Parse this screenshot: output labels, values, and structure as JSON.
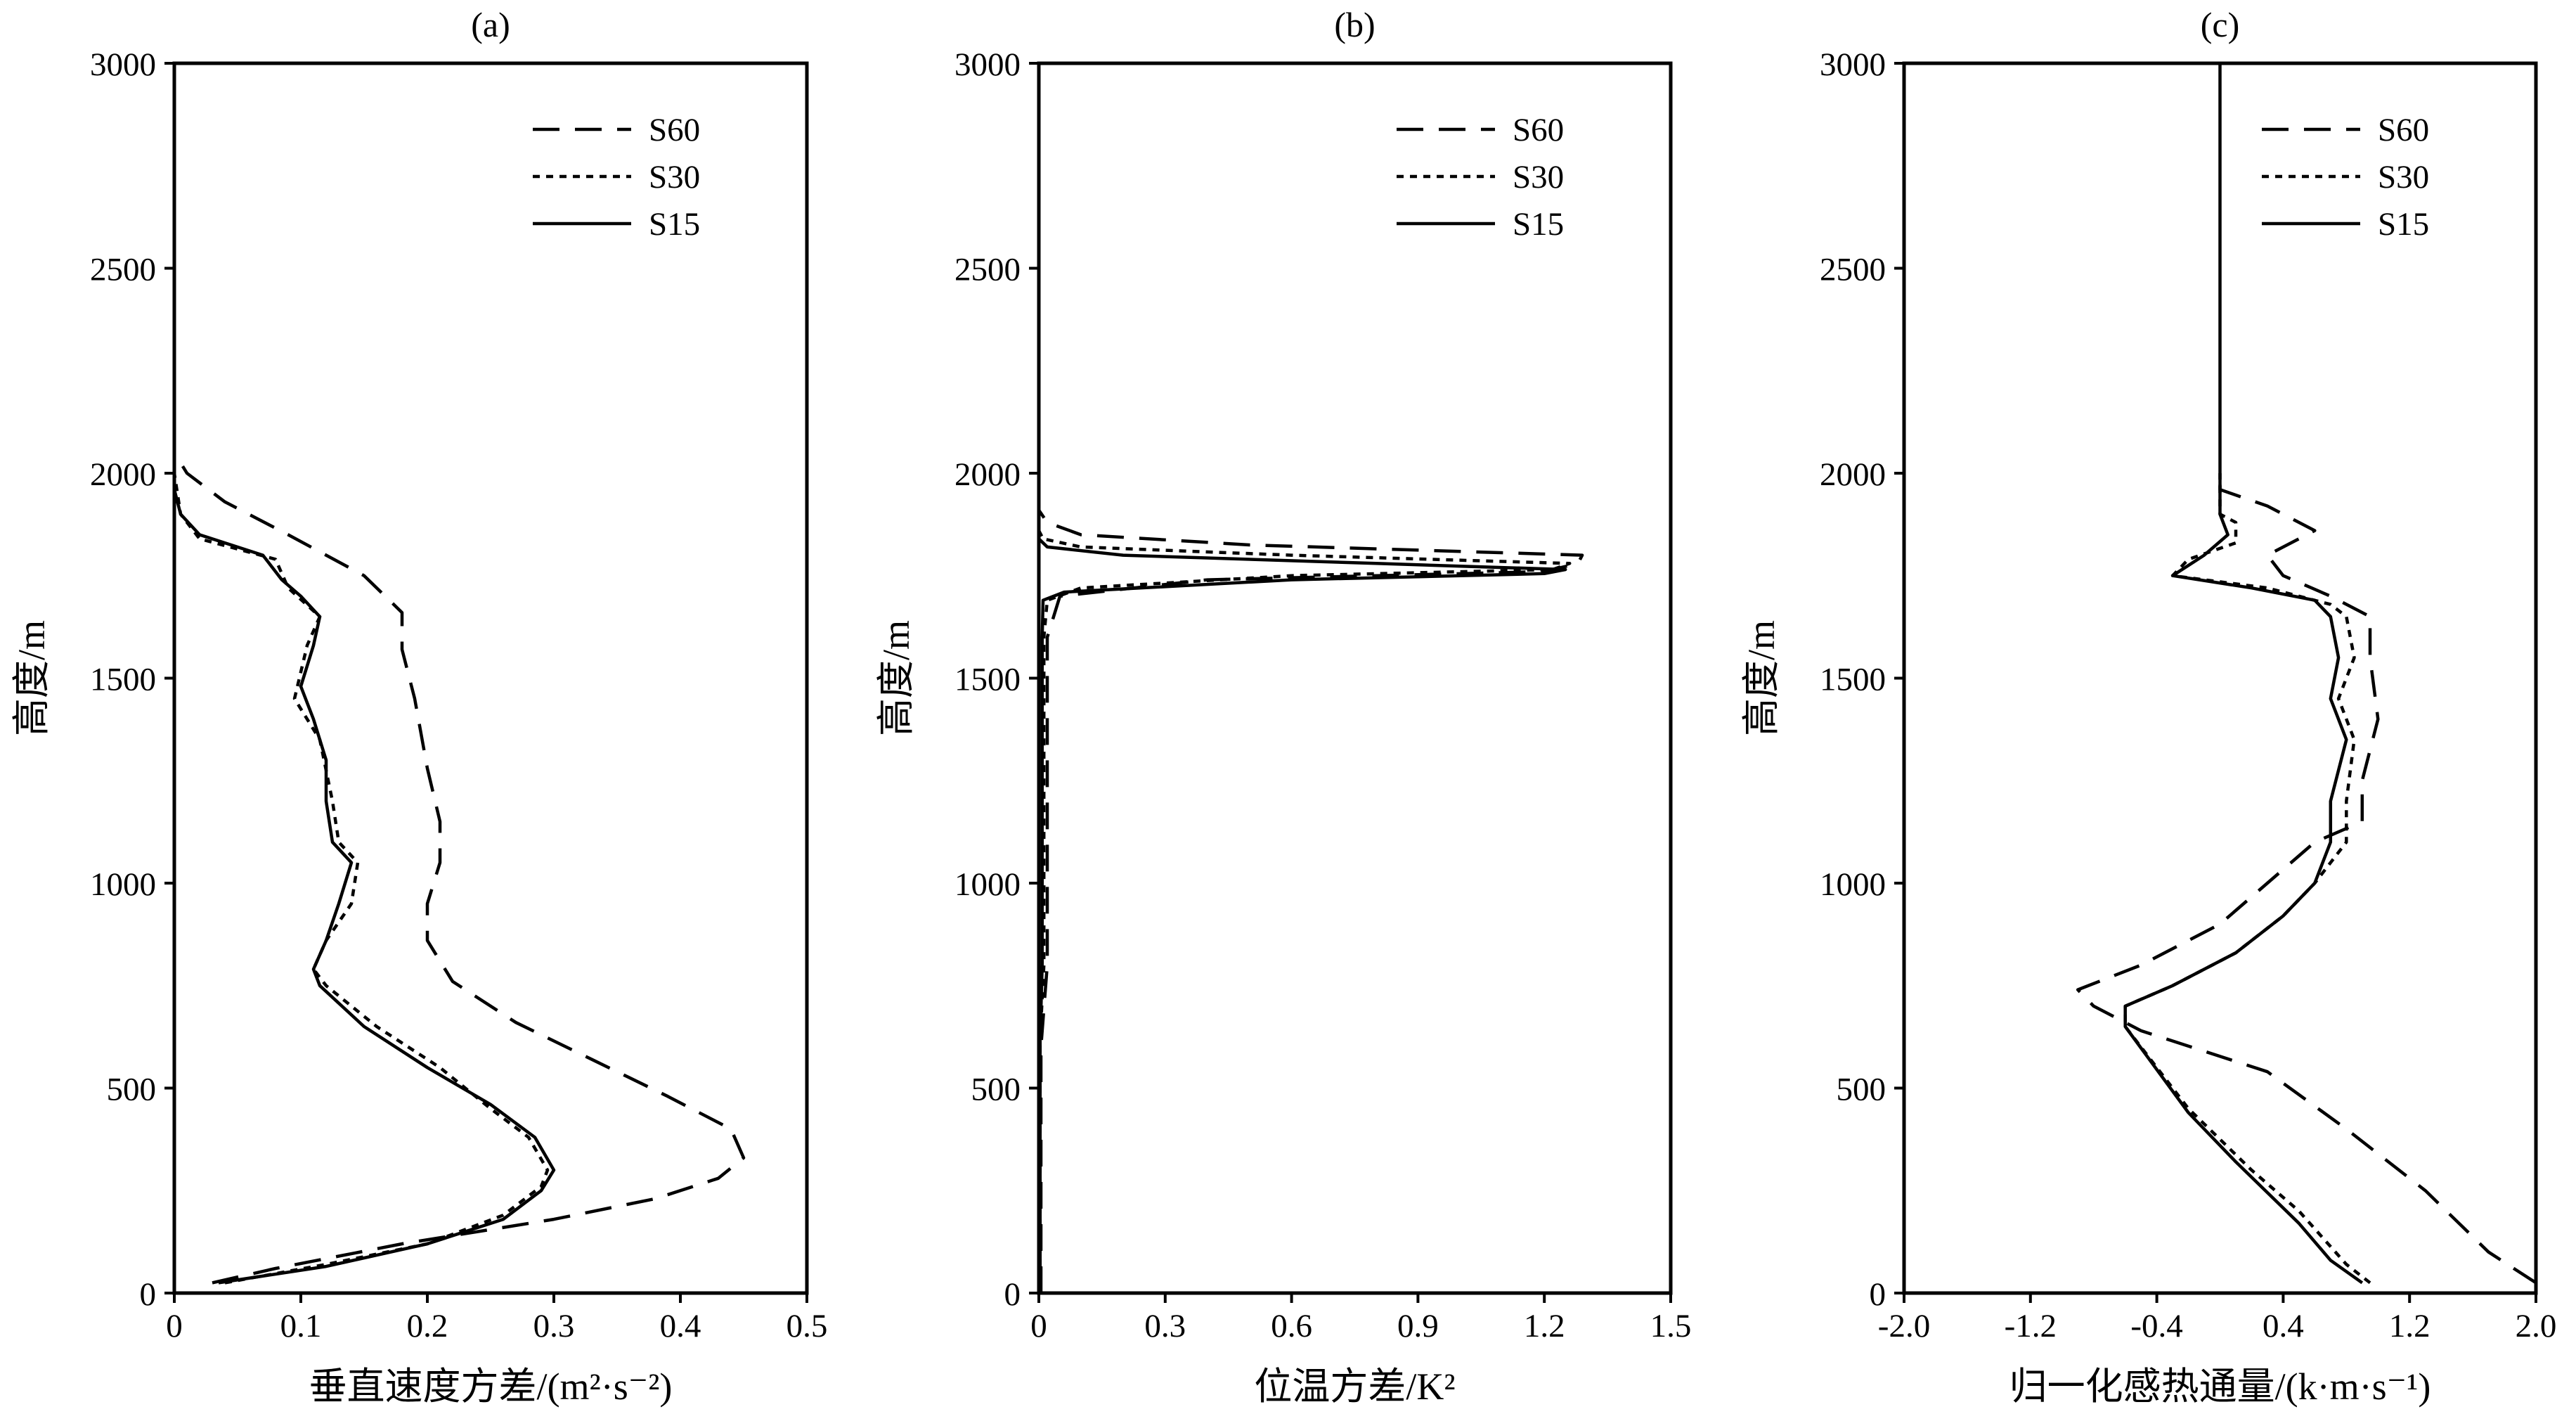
{
  "chart_data": [
    {
      "type": "line",
      "title": "(a)",
      "xlabel": "垂直速度方差/(m²·s⁻²)",
      "ylabel": "高度/m",
      "xlim": [
        0,
        0.5
      ],
      "ylim": [
        0,
        3000
      ],
      "xticks": [
        "0",
        "0.1",
        "0.2",
        "0.3",
        "0.4",
        "0.5"
      ],
      "yticks": [
        "0",
        "500",
        "1000",
        "1500",
        "2000",
        "2500",
        "3000"
      ],
      "legend_position": "top-right",
      "series": [
        {
          "name": "S60",
          "style": "dashed",
          "points": [
            [
              0.03,
              25
            ],
            [
              0.08,
              60
            ],
            [
              0.18,
              120
            ],
            [
              0.3,
              180
            ],
            [
              0.38,
              230
            ],
            [
              0.43,
              280
            ],
            [
              0.45,
              330
            ],
            [
              0.44,
              400
            ],
            [
              0.39,
              480
            ],
            [
              0.33,
              570
            ],
            [
              0.27,
              660
            ],
            [
              0.22,
              760
            ],
            [
              0.2,
              860
            ],
            [
              0.2,
              950
            ],
            [
              0.21,
              1050
            ],
            [
              0.21,
              1150
            ],
            [
              0.2,
              1280
            ],
            [
              0.19,
              1450
            ],
            [
              0.18,
              1570
            ],
            [
              0.18,
              1660
            ],
            [
              0.15,
              1750
            ],
            [
              0.09,
              1850
            ],
            [
              0.04,
              1930
            ],
            [
              0.01,
              2000
            ],
            [
              0,
              2050
            ]
          ]
        },
        {
          "name": "S30",
          "style": "dotted",
          "points": [
            [
              0.04,
              25
            ],
            [
              0.12,
              70
            ],
            [
              0.2,
              120
            ],
            [
              0.26,
              190
            ],
            [
              0.29,
              260
            ],
            [
              0.295,
              300
            ],
            [
              0.28,
              380
            ],
            [
              0.25,
              450
            ],
            [
              0.21,
              550
            ],
            [
              0.16,
              650
            ],
            [
              0.12,
              750
            ],
            [
              0.11,
              790
            ],
            [
              0.12,
              860
            ],
            [
              0.14,
              950
            ],
            [
              0.145,
              1050
            ],
            [
              0.13,
              1100
            ],
            [
              0.125,
              1200
            ],
            [
              0.115,
              1350
            ],
            [
              0.095,
              1450
            ],
            [
              0.105,
              1580
            ],
            [
              0.115,
              1650
            ],
            [
              0.09,
              1720
            ],
            [
              0.08,
              1790
            ],
            [
              0.02,
              1840
            ],
            [
              0.005,
              1900
            ],
            [
              0,
              2000
            ],
            [
              0,
              2060
            ]
          ]
        },
        {
          "name": "S15",
          "style": "solid",
          "points": [
            [
              0.035,
              25
            ],
            [
              0.12,
              65
            ],
            [
              0.2,
              120
            ],
            [
              0.26,
              180
            ],
            [
              0.29,
              250
            ],
            [
              0.3,
              300
            ],
            [
              0.285,
              380
            ],
            [
              0.25,
              460
            ],
            [
              0.2,
              550
            ],
            [
              0.15,
              650
            ],
            [
              0.115,
              750
            ],
            [
              0.11,
              790
            ],
            [
              0.12,
              860
            ],
            [
              0.13,
              950
            ],
            [
              0.14,
              1050
            ],
            [
              0.125,
              1100
            ],
            [
              0.12,
              1200
            ],
            [
              0.12,
              1300
            ],
            [
              0.11,
              1400
            ],
            [
              0.1,
              1480
            ],
            [
              0.11,
              1580
            ],
            [
              0.115,
              1650
            ],
            [
              0.1,
              1700
            ],
            [
              0.085,
              1740
            ],
            [
              0.07,
              1800
            ],
            [
              0.02,
              1850
            ],
            [
              0.005,
              1900
            ],
            [
              0,
              1960
            ],
            [
              0,
              2070
            ]
          ]
        }
      ]
    },
    {
      "type": "line",
      "title": "(b)",
      "xlabel": "位温方差/K²",
      "ylabel": "高度/m",
      "xlim": [
        0,
        1.5
      ],
      "ylim": [
        0,
        3000
      ],
      "xticks": [
        "0",
        "0.3",
        "0.6",
        "0.9",
        "1.2",
        "1.5"
      ],
      "yticks": [
        "0",
        "500",
        "1000",
        "1500",
        "2000",
        "2500",
        "3000"
      ],
      "legend_position": "top-right",
      "series": [
        {
          "name": "S60",
          "style": "dashed",
          "points": [
            [
              0.005,
              0
            ],
            [
              0.005,
              600
            ],
            [
              0.02,
              800
            ],
            [
              0.02,
              1200
            ],
            [
              0.02,
              1600
            ],
            [
              0.05,
              1700
            ],
            [
              0.4,
              1740
            ],
            [
              1.2,
              1760
            ],
            [
              1.28,
              1780
            ],
            [
              1.29,
              1800
            ],
            [
              0.5,
              1825
            ],
            [
              0.1,
              1850
            ],
            [
              0.02,
              1880
            ],
            [
              0,
              1910
            ]
          ]
        },
        {
          "name": "S30",
          "style": "dotted",
          "points": [
            [
              0.003,
              0
            ],
            [
              0.003,
              620
            ],
            [
              0.012,
              800
            ],
            [
              0.012,
              1200
            ],
            [
              0.012,
              1600
            ],
            [
              0.02,
              1690
            ],
            [
              0.1,
              1720
            ],
            [
              0.6,
              1750
            ],
            [
              1.22,
              1765
            ],
            [
              1.26,
              1780
            ],
            [
              0.6,
              1800
            ],
            [
              0.1,
              1820
            ],
            [
              0.01,
              1840
            ],
            [
              0,
              1860
            ]
          ]
        },
        {
          "name": "S15",
          "style": "solid",
          "points": [
            [
              0.003,
              0
            ],
            [
              0.003,
              620
            ],
            [
              0.008,
              800
            ],
            [
              0.008,
              1200
            ],
            [
              0.008,
              1600
            ],
            [
              0.01,
              1690
            ],
            [
              0.06,
              1710
            ],
            [
              0.6,
              1740
            ],
            [
              1.2,
              1755
            ],
            [
              1.25,
              1765
            ],
            [
              0.8,
              1780
            ],
            [
              0.2,
              1800
            ],
            [
              0.02,
              1820
            ],
            [
              0,
              1840
            ]
          ]
        }
      ]
    },
    {
      "type": "line",
      "title": "(c)",
      "xlabel": "归一化感热通量/(k·m·s⁻¹)",
      "ylabel": "高度/m",
      "xlim": [
        -2.0,
        2.0
      ],
      "ylim": [
        0,
        3000
      ],
      "xticks": [
        "-2.0",
        "-1.2",
        "-0.4",
        "0.4",
        "1.2",
        "2.0"
      ],
      "yticks": [
        "0",
        "500",
        "1000",
        "1500",
        "2000",
        "2500",
        "3000"
      ],
      "legend_position": "top-right",
      "series": [
        {
          "name": "S60",
          "style": "dashed",
          "points": [
            [
              2.0,
              25
            ],
            [
              1.7,
              100
            ],
            [
              1.3,
              250
            ],
            [
              0.8,
              400
            ],
            [
              0.3,
              540
            ],
            [
              -0.5,
              640
            ],
            [
              -0.8,
              700
            ],
            [
              -0.9,
              740
            ],
            [
              -0.5,
              800
            ],
            [
              0,
              900
            ],
            [
              0.3,
              1000
            ],
            [
              0.6,
              1100
            ],
            [
              0.9,
              1150
            ],
            [
              0.9,
              1250
            ],
            [
              1.0,
              1400
            ],
            [
              0.95,
              1550
            ],
            [
              0.95,
              1650
            ],
            [
              0.7,
              1700
            ],
            [
              0.4,
              1750
            ],
            [
              0.3,
              1800
            ],
            [
              0.6,
              1860
            ],
            [
              0.3,
              1920
            ],
            [
              0,
              1960
            ],
            [
              0,
              2000
            ]
          ]
        },
        {
          "name": "S30",
          "style": "dotted",
          "points": [
            [
              0.95,
              25
            ],
            [
              0.8,
              70
            ],
            [
              0.5,
              200
            ],
            [
              0.2,
              300
            ],
            [
              -0.2,
              450
            ],
            [
              -0.6,
              650
            ],
            [
              -0.6,
              700
            ],
            [
              -0.3,
              750
            ],
            [
              0.1,
              830
            ],
            [
              0.4,
              920
            ],
            [
              0.6,
              1000
            ],
            [
              0.8,
              1100
            ],
            [
              0.8,
              1200
            ],
            [
              0.85,
              1350
            ],
            [
              0.75,
              1450
            ],
            [
              0.85,
              1550
            ],
            [
              0.8,
              1650
            ],
            [
              0.7,
              1680
            ],
            [
              0.3,
              1720
            ],
            [
              -0.3,
              1750
            ],
            [
              -0.2,
              1790
            ],
            [
              0.1,
              1830
            ],
            [
              0.1,
              1880
            ],
            [
              0,
              1900
            ],
            [
              0,
              2000
            ]
          ]
        },
        {
          "name": "S15",
          "style": "solid",
          "points": [
            [
              0.9,
              25
            ],
            [
              0.7,
              80
            ],
            [
              0.5,
              170
            ],
            [
              0.1,
              320
            ],
            [
              -0.2,
              440
            ],
            [
              -0.6,
              650
            ],
            [
              -0.6,
              700
            ],
            [
              -0.3,
              750
            ],
            [
              0.1,
              830
            ],
            [
              0.4,
              920
            ],
            [
              0.6,
              1000
            ],
            [
              0.7,
              1100
            ],
            [
              0.7,
              1200
            ],
            [
              0.8,
              1350
            ],
            [
              0.7,
              1450
            ],
            [
              0.75,
              1550
            ],
            [
              0.7,
              1650
            ],
            [
              0.6,
              1690
            ],
            [
              0.2,
              1720
            ],
            [
              -0.3,
              1750
            ],
            [
              -0.1,
              1800
            ],
            [
              0.05,
              1850
            ],
            [
              0,
              1900
            ],
            [
              0,
              3000
            ]
          ]
        }
      ]
    }
  ]
}
